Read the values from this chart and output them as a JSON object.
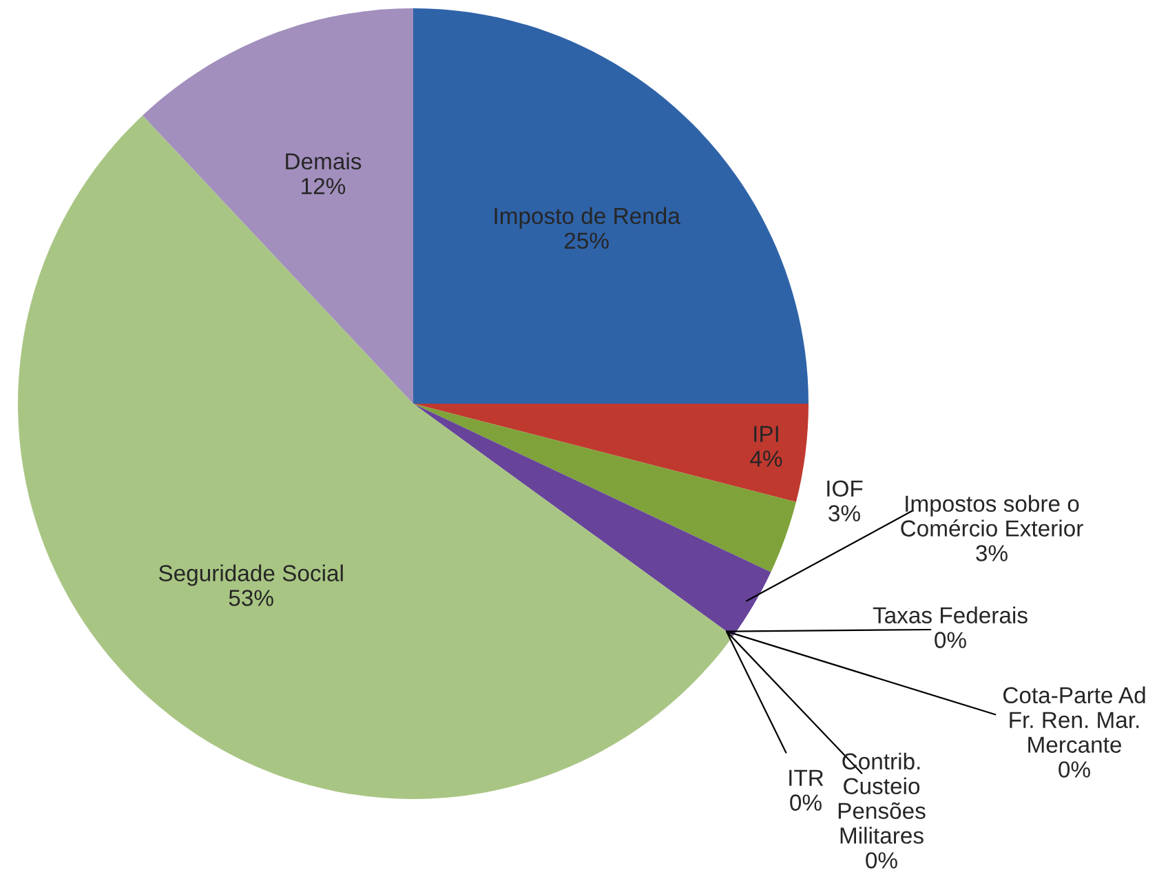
{
  "chart_data": {
    "type": "pie",
    "categories": [
      "Imposto de Renda",
      "IPI",
      "IOF",
      "Impostos sobre o\nComércio Exterior",
      "Taxas Federais",
      "Cota-Parte Ad\nFr. Ren. Mar.\nMercante",
      "Contrib.\nCusteio\nPensões\nMilitares",
      "ITR",
      "Seguridade Social",
      "Demais"
    ],
    "values": [
      25,
      4,
      3,
      3,
      0,
      0,
      0,
      0,
      53,
      12
    ],
    "value_labels": [
      "25%",
      "4%",
      "3%",
      "3%",
      "0%",
      "0%",
      "0%",
      "0%",
      "53%",
      "12%"
    ],
    "colors": [
      "#2f63a8",
      "#c0392f",
      "#7fa33a",
      "#67449a",
      "#2a9bb5",
      "#ee8a2a",
      "#8ea9d8",
      "#d89a96",
      "#a9c584",
      "#a28fbd"
    ],
    "legend": false
  }
}
